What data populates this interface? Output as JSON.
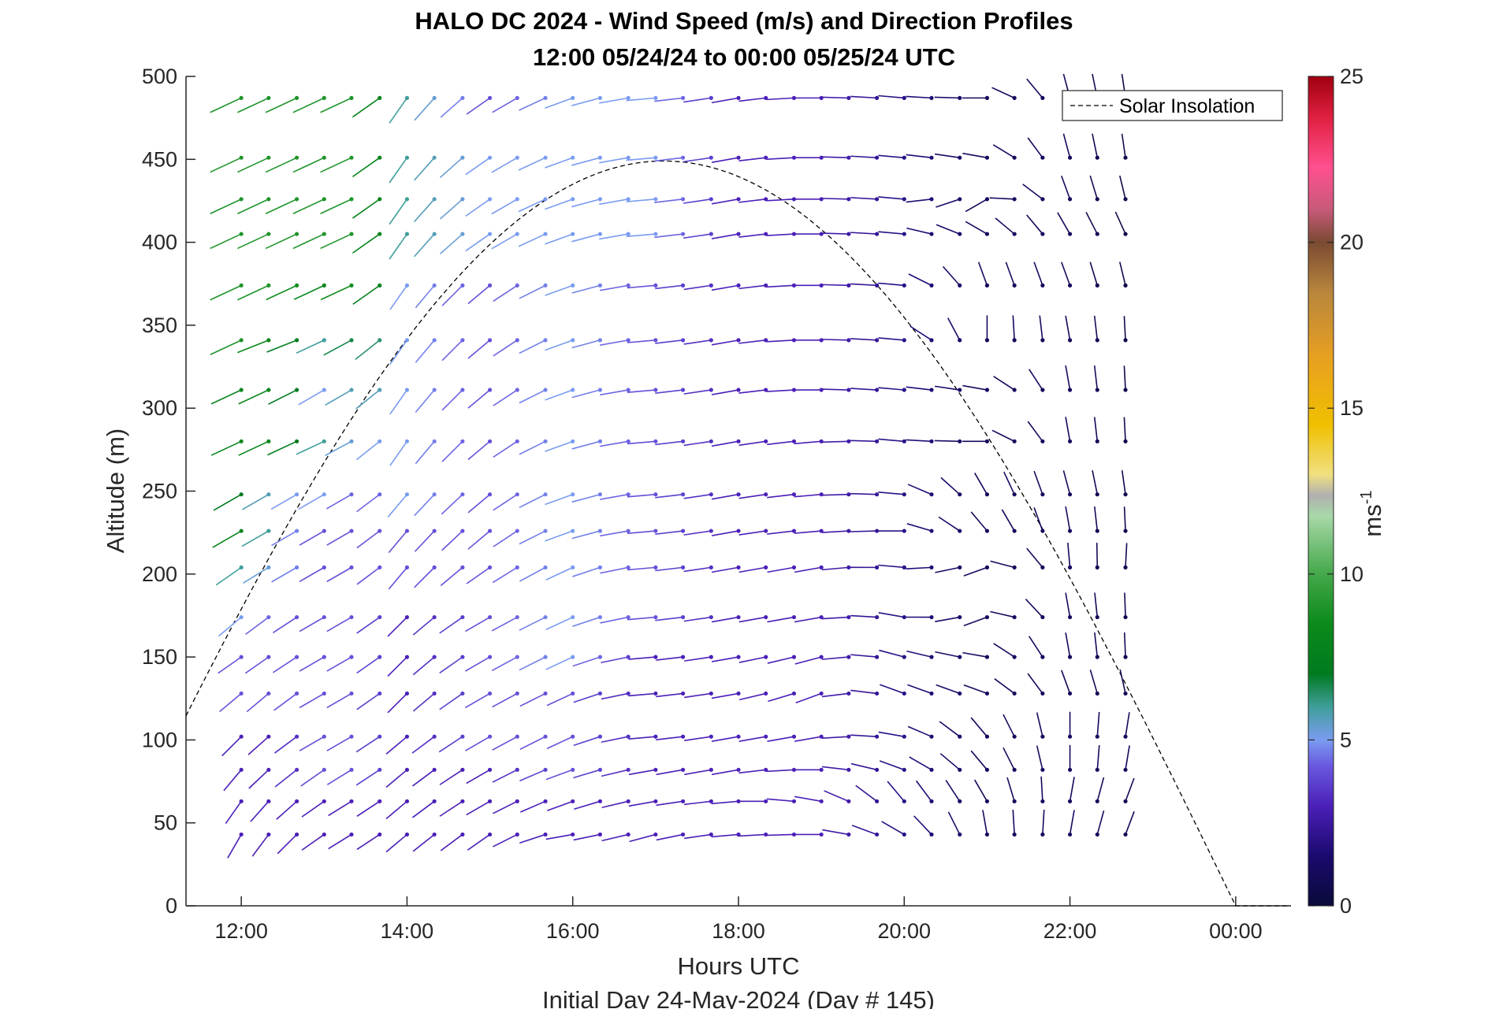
{
  "chart_data": {
    "type": "wind-barb-profile",
    "title_line1": "HALO DC 2024 - Wind Speed (m/s) and Direction Profiles",
    "title_line2": "12:00 05/24/24 to 00:00 05/25/24  UTC",
    "xlabel": "Hours UTC",
    "xsublabel": "Initial Day 24-May-2024 (Day # 145)",
    "ylabel": "Altitude (m)",
    "xlim": [
      11.333,
      24.667
    ],
    "ylim": [
      0,
      500
    ],
    "x_ticks": [
      {
        "value": 12,
        "label": "12:00"
      },
      {
        "value": 14,
        "label": "14:00"
      },
      {
        "value": 16,
        "label": "16:00"
      },
      {
        "value": 18,
        "label": "18:00"
      },
      {
        "value": 20,
        "label": "20:00"
      },
      {
        "value": 22,
        "label": "22:00"
      },
      {
        "value": 24,
        "label": "00:00"
      }
    ],
    "y_ticks": [
      "0",
      "50",
      "100",
      "150",
      "200",
      "250",
      "300",
      "350",
      "400",
      "450",
      "500"
    ],
    "colorbar": {
      "label": "ms",
      "label_exponent": "-1",
      "range": [
        0,
        25
      ],
      "ticks": [
        "0",
        "5",
        "10",
        "15",
        "20",
        "25"
      ]
    },
    "legend": {
      "entry": "Solar Insolation",
      "style": "dashed",
      "color": "#000000",
      "placement": "top-right"
    },
    "solar_insolation": {
      "peak_time": 17.1,
      "peak_altitude": 449,
      "end_time": 24.0,
      "flat_until": 24.667
    },
    "wind": {
      "times": [
        12.0,
        12.33,
        12.67,
        13.0,
        13.33,
        13.67,
        14.0,
        14.33,
        14.67,
        15.0,
        15.33,
        15.67,
        16.0,
        16.33,
        16.67,
        17.0,
        17.33,
        17.67,
        18.0,
        18.33,
        18.67,
        19.0,
        19.33,
        19.67,
        20.0,
        20.33,
        20.67,
        21.0,
        21.33,
        21.67,
        22.0,
        22.33,
        22.67
      ],
      "altitudes": [
        43,
        63,
        82,
        102,
        128,
        150,
        174,
        204,
        226,
        248,
        280,
        311,
        341,
        374,
        405,
        426,
        451,
        487
      ],
      "profiles": [
        {
          "t": 12.0,
          "speeds": [
            3,
            3,
            3,
            3,
            4,
            4,
            5,
            6,
            8,
            7,
            8,
            8,
            9,
            9,
            9,
            9,
            9,
            9
          ],
          "directions": [
            210,
            215,
            220,
            225,
            230,
            235,
            230,
            235,
            240,
            240,
            245,
            245,
            245,
            245,
            245,
            245,
            245,
            245
          ]
        },
        {
          "t": 12.5,
          "speeds": [
            3,
            3,
            3,
            3,
            4,
            4,
            4,
            5,
            5,
            5,
            8,
            8,
            8,
            9,
            9,
            9,
            9,
            9
          ],
          "directions": [
            220,
            225,
            230,
            230,
            230,
            235,
            235,
            240,
            240,
            240,
            245,
            245,
            250,
            245,
            245,
            245,
            245,
            245
          ]
        },
        {
          "t": 13.0,
          "speeds": [
            3,
            3,
            4,
            4,
            4,
            4,
            4,
            4,
            4,
            5,
            6,
            5,
            6,
            8,
            9,
            9,
            9,
            9
          ],
          "directions": [
            235,
            235,
            235,
            240,
            240,
            240,
            240,
            240,
            240,
            240,
            245,
            240,
            245,
            245,
            245,
            245,
            245,
            245
          ]
        },
        {
          "t": 13.5,
          "speeds": [
            3,
            3,
            4,
            4,
            4,
            4,
            4,
            4,
            4,
            4,
            5,
            6,
            7,
            9,
            9,
            9,
            9,
            9
          ],
          "directions": [
            240,
            240,
            240,
            240,
            240,
            240,
            240,
            240,
            240,
            240,
            240,
            240,
            240,
            245,
            245,
            245,
            245,
            245
          ]
        },
        {
          "t": 14.0,
          "speeds": [
            3,
            3,
            3,
            3,
            3,
            3,
            3,
            4,
            4,
            5,
            5,
            5,
            5,
            5,
            6,
            6,
            6,
            6
          ],
          "directions": [
            230,
            230,
            230,
            230,
            225,
            225,
            225,
            220,
            220,
            220,
            215,
            215,
            215,
            215,
            215,
            215,
            215,
            215
          ]
        },
        {
          "t": 15.0,
          "speeds": [
            3,
            3,
            3,
            4,
            4,
            4,
            4,
            4,
            4,
            4,
            4,
            4,
            4,
            4,
            5,
            5,
            5,
            4
          ],
          "directions": [
            235,
            240,
            240,
            240,
            240,
            240,
            240,
            235,
            230,
            230,
            230,
            230,
            230,
            230,
            235,
            235,
            235,
            235
          ]
        },
        {
          "t": 16.0,
          "speeds": [
            3,
            3,
            4,
            4,
            4,
            5,
            5,
            5,
            5,
            5,
            5,
            5,
            5,
            5,
            5,
            5,
            5,
            5
          ],
          "directions": [
            260,
            250,
            250,
            245,
            245,
            245,
            245,
            245,
            250,
            250,
            250,
            250,
            250,
            250,
            250,
            250,
            250,
            250
          ]
        },
        {
          "t": 17.0,
          "speeds": [
            3,
            3,
            3,
            3,
            3,
            3,
            4,
            4,
            4,
            4,
            4,
            4,
            4,
            4,
            5,
            5,
            5,
            5
          ],
          "directions": [
            255,
            260,
            260,
            265,
            265,
            265,
            265,
            265,
            265,
            265,
            265,
            265,
            265,
            265,
            265,
            265,
            265,
            265
          ]
        },
        {
          "t": 18.0,
          "speeds": [
            3,
            3,
            3,
            3,
            3,
            3,
            3,
            3,
            3,
            3,
            3,
            3,
            3,
            3,
            3,
            3,
            3,
            3
          ],
          "directions": [
            265,
            265,
            260,
            260,
            260,
            260,
            260,
            260,
            260,
            260,
            260,
            260,
            260,
            260,
            260,
            260,
            260,
            260
          ]
        },
        {
          "t": 19.0,
          "speeds": [
            3,
            3,
            3,
            3,
            3,
            3,
            3,
            3,
            3,
            3,
            3,
            3,
            3,
            3,
            3,
            3,
            3,
            3
          ],
          "directions": [
            270,
            280,
            270,
            260,
            250,
            255,
            260,
            260,
            265,
            265,
            265,
            270,
            270,
            270,
            270,
            270,
            270,
            270
          ]
        },
        {
          "t": 20.0,
          "speeds": [
            2,
            2,
            2,
            2,
            2,
            2,
            2,
            2,
            2,
            2,
            2,
            2,
            2,
            2,
            2,
            2,
            2,
            2
          ],
          "directions": [
            300,
            320,
            290,
            280,
            290,
            285,
            280,
            275,
            270,
            275,
            275,
            275,
            275,
            275,
            275,
            275,
            275,
            275
          ]
        },
        {
          "t": 21.0,
          "speeds": [
            1,
            1,
            1,
            1,
            1,
            1,
            1,
            1,
            1,
            1,
            1,
            1,
            1,
            1,
            1,
            1,
            1,
            1
          ],
          "directions": [
            350,
            330,
            320,
            320,
            290,
            280,
            250,
            250,
            320,
            330,
            270,
            280,
            360,
            340,
            300,
            240,
            280,
            270
          ]
        },
        {
          "t": 22.0,
          "speeds": [
            1,
            1,
            1,
            1,
            1,
            1,
            1,
            1,
            1,
            1,
            1,
            1,
            1,
            1,
            1,
            1,
            1,
            1
          ],
          "directions": [
            10,
            10,
            0,
            0,
            340,
            350,
            350,
            355,
            350,
            345,
            350,
            350,
            350,
            340,
            330,
            340,
            345,
            345
          ]
        }
      ]
    }
  }
}
